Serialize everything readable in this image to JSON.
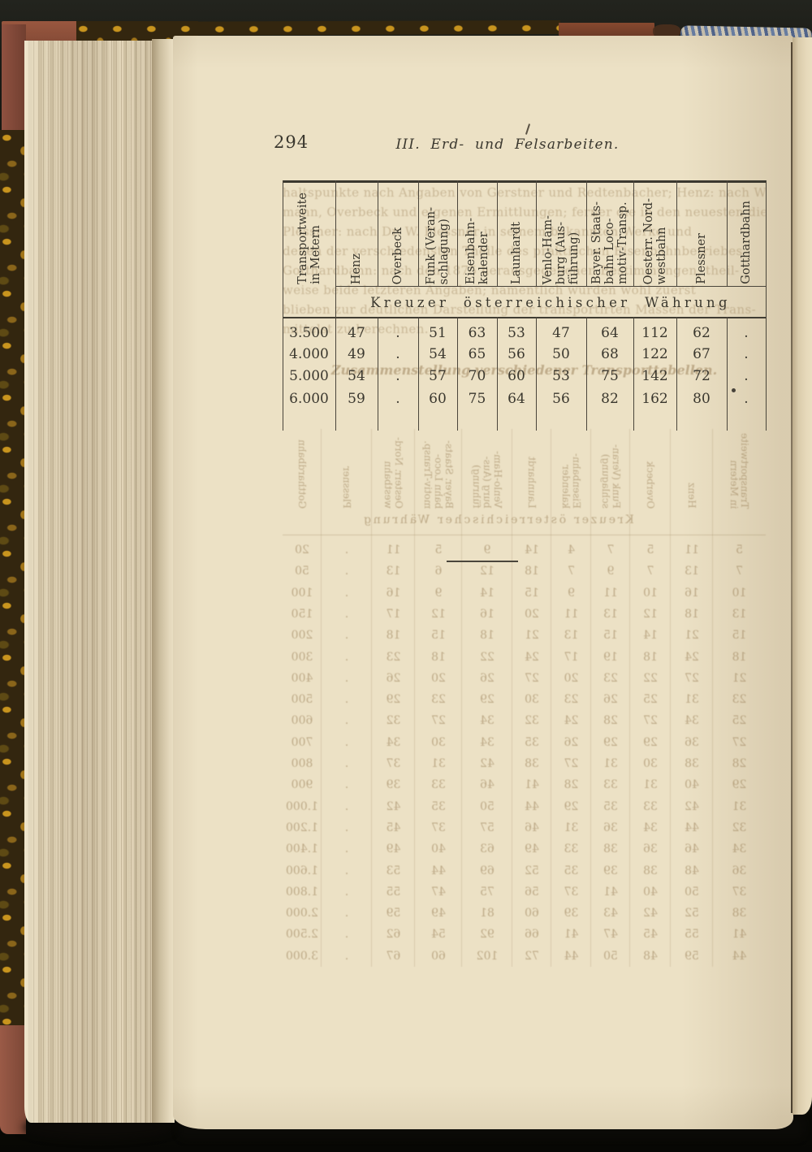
{
  "page": {
    "number": "294",
    "running_head": "III. Erd- und Felsarbeiten."
  },
  "table": {
    "row_header_label": "Transportweite\nin Metern",
    "columns": [
      "Henz",
      "Overbeck",
      "Funk (Veran-\nschlagung)",
      "Eisenbahn-\nkalender",
      "Launhardt",
      "Venlo-Ham-\nburg (Aus-\nführung)",
      "Bayer. Staats-\nbahn Loco-\nmotiv-Transp.",
      "Oesterr. Nord-\nwestbahn",
      "Plessner",
      "Gotthardbahn"
    ],
    "unit_header": "Kreuzer österreichischer Währung",
    "rows": [
      {
        "label": "3.500",
        "values": [
          "47",
          ".",
          "51",
          "63",
          "53",
          "47",
          "64",
          "112",
          "62",
          "."
        ]
      },
      {
        "label": "4.000",
        "values": [
          "49",
          ".",
          "54",
          "65",
          "56",
          "50",
          "68",
          "122",
          "67",
          "."
        ]
      },
      {
        "label": "5.000",
        "values": [
          "54",
          ".",
          "57",
          "70",
          "60",
          "53",
          "75",
          "142",
          "72",
          "."
        ]
      },
      {
        "label": "6.000",
        "values": [
          "59",
          ".",
          "60",
          "75",
          "64",
          "56",
          "82",
          "162",
          "80",
          "."
        ]
      }
    ]
  },
  "show_through": {
    "note": "faint mirrored ink visible through the paper from the reverse page",
    "heading": "Zusammenstellung verschiedener Transporttabellen.",
    "paragraph_lines": [
      "haltspunkte nach Angaben von Gerstner und Redtenbacher; Henz: nach Websky, Holt-",
      "mann, Overbeck und eigenen Ermittlungen; ferner die in den neuesten die",
      "Plessner: nach Dr. W. Plessner in seinem bekannten Werke und",
      "denen der verschiedensten Theile des praktischen Eisenbahnbetriebes",
      "Gotthardbahn: nach den 1875 herausgegebenen Bestimmungen, theil-",
      "weise beide letzteren Angaben; namentlich wurden wohl zuerst",
      "blieben zur deutlichen Darstellung der transportirten Massen der Trans-",
      "mittelst zu berechnen."
    ],
    "unit_header": "Kreuzer österreichischer Währung",
    "rows": [
      {
        "label": "20",
        "values": [
          "5",
          "11",
          "5",
          "7",
          "4",
          "14",
          "9",
          "5",
          "11",
          "."
        ]
      },
      {
        "label": "50",
        "values": [
          "7",
          "13",
          "7",
          "9",
          "7",
          "18",
          "12",
          "6",
          "13",
          "."
        ]
      },
      {
        "label": "100",
        "values": [
          "10",
          "16",
          "10",
          "11",
          "9",
          "15",
          "14",
          "9",
          "16",
          "."
        ]
      },
      {
        "label": "150",
        "values": [
          "13",
          "18",
          "12",
          "13",
          "11",
          "20",
          "16",
          "12",
          "17",
          "."
        ]
      },
      {
        "label": "200",
        "values": [
          "15",
          "21",
          "14",
          "15",
          "13",
          "21",
          "18",
          "15",
          "18",
          "."
        ]
      },
      {
        "label": "300",
        "values": [
          "18",
          "24",
          "18",
          "19",
          "17",
          "24",
          "22",
          "18",
          "23",
          "."
        ]
      },
      {
        "label": "400",
        "values": [
          "21",
          "27",
          "22",
          "23",
          "20",
          "27",
          "26",
          "20",
          "26",
          "."
        ]
      },
      {
        "label": "500",
        "values": [
          "23",
          "31",
          "25",
          "26",
          "23",
          "30",
          "29",
          "23",
          "29",
          "."
        ]
      },
      {
        "label": "600",
        "values": [
          "25",
          "34",
          "27",
          "28",
          "24",
          "32",
          "34",
          "27",
          "32",
          "."
        ]
      },
      {
        "label": "700",
        "values": [
          "27",
          "36",
          "29",
          "29",
          "26",
          "35",
          "34",
          "30",
          "34",
          "."
        ]
      },
      {
        "label": "800",
        "values": [
          "28",
          "38",
          "30",
          "31",
          "27",
          "38",
          "42",
          "31",
          "37",
          "."
        ]
      },
      {
        "label": "900",
        "values": [
          "29",
          "40",
          "31",
          "33",
          "28",
          "41",
          "46",
          "33",
          "39",
          "."
        ]
      },
      {
        "label": "1.000",
        "values": [
          "31",
          "42",
          "33",
          "35",
          "29",
          "44",
          "50",
          "35",
          "42",
          "."
        ]
      },
      {
        "label": "1.200",
        "values": [
          "32",
          "44",
          "34",
          "36",
          "31",
          "46",
          "57",
          "37",
          "45",
          "."
        ]
      },
      {
        "label": "1.400",
        "values": [
          "34",
          "46",
          "36",
          "38",
          "33",
          "49",
          "63",
          "40",
          "49",
          "."
        ]
      },
      {
        "label": "1.600",
        "values": [
          "36",
          "48",
          "38",
          "39",
          "35",
          "52",
          "69",
          "44",
          "53",
          "."
        ]
      },
      {
        "label": "1.800",
        "values": [
          "37",
          "50",
          "40",
          "41",
          "37",
          "56",
          "75",
          "47",
          "55",
          "."
        ]
      },
      {
        "label": "2.000",
        "values": [
          "38",
          "52",
          "42",
          "43",
          "39",
          "60",
          "81",
          "49",
          "59",
          "."
        ]
      },
      {
        "label": "2.500",
        "values": [
          "41",
          "55",
          "45",
          "47",
          "41",
          "66",
          "92",
          "54",
          "62",
          "."
        ]
      },
      {
        "label": "3.000",
        "values": [
          "44",
          "59",
          "48",
          "50",
          "44",
          "72",
          "102",
          "60",
          "67",
          "."
        ]
      }
    ]
  },
  "colors": {
    "page": "#ece1c5",
    "ink": "#3a372e",
    "ghost": "#97805a",
    "leather_red": "#8e5244",
    "marble_amber": "#c8941e",
    "headband_blue": "#677ca0",
    "scan_black": "#15160f"
  }
}
